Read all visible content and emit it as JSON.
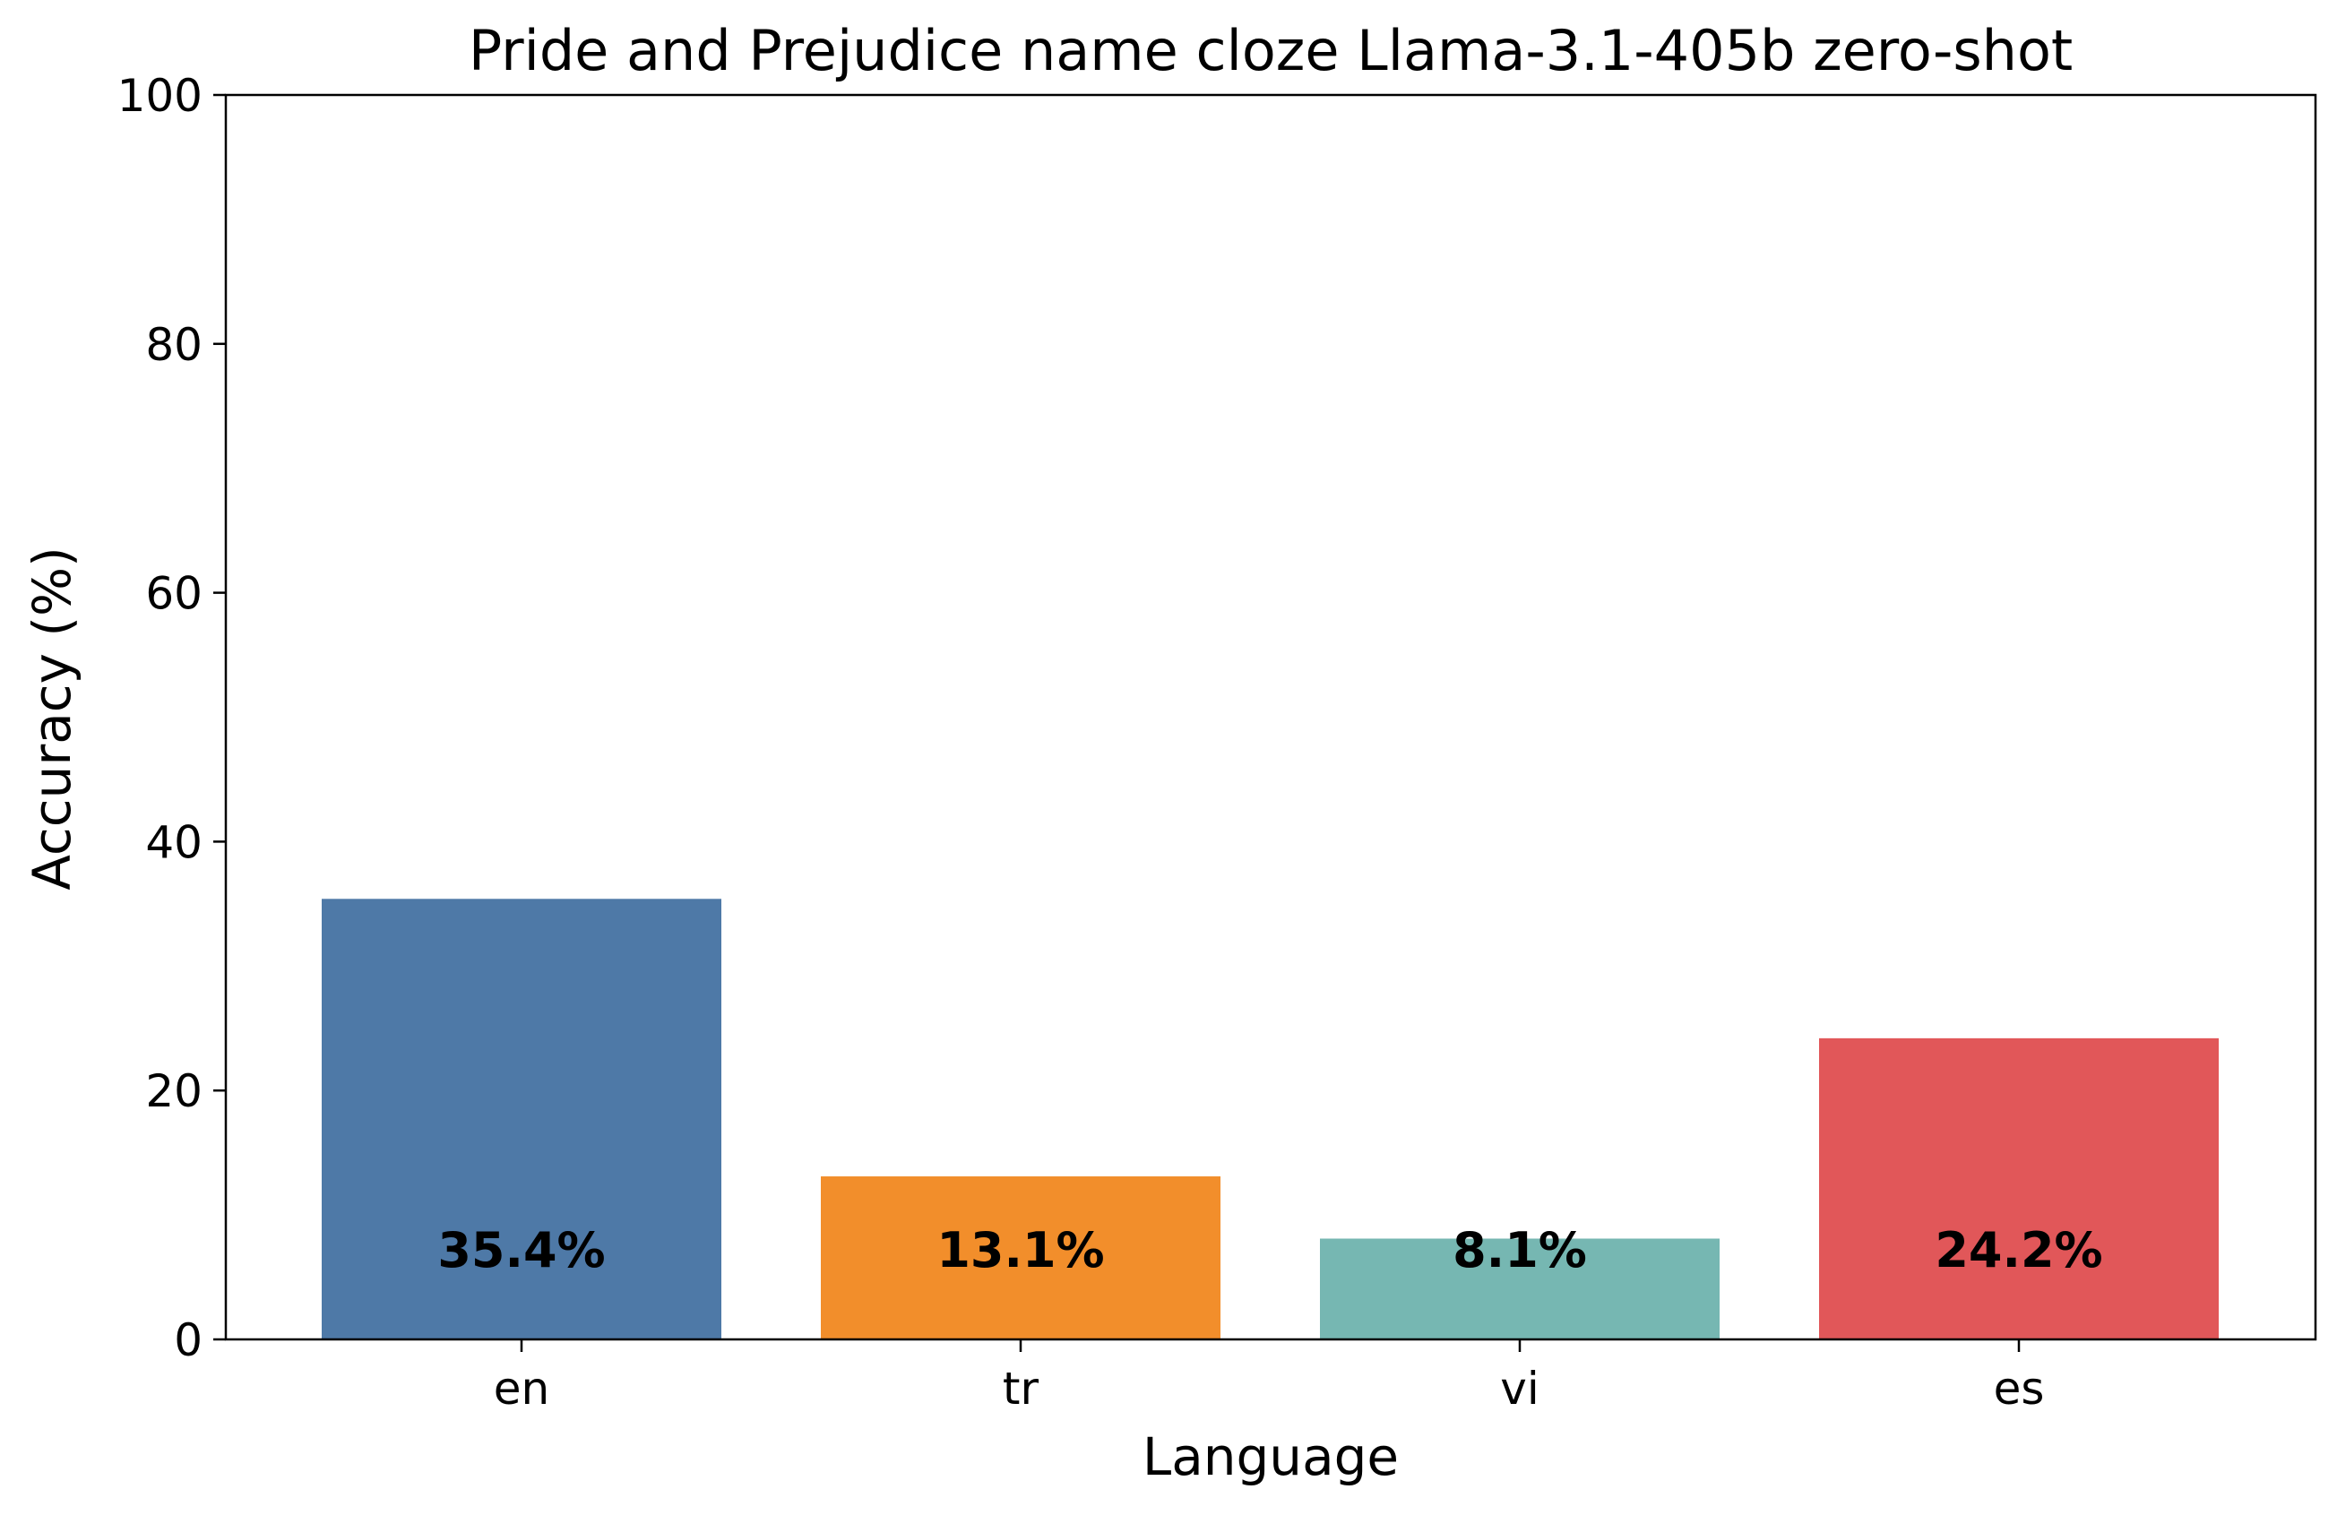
{
  "chart_data": {
    "type": "bar",
    "title": "Pride and Prejudice name cloze Llama-3.1-405b zero-shot",
    "xlabel": "Language",
    "ylabel": "Accuracy (%)",
    "categories": [
      "en",
      "tr",
      "vi",
      "es"
    ],
    "values": [
      35.4,
      13.1,
      8.1,
      24.2
    ],
    "value_labels": [
      "35.4%",
      "13.1%",
      "8.1%",
      "24.2%"
    ],
    "colors": [
      "#4e79a7",
      "#f28e2b",
      "#76b7b2",
      "#e15759"
    ],
    "ylim": [
      0,
      100
    ],
    "yticks": [
      0,
      20,
      40,
      60,
      80,
      100
    ],
    "ytick_labels": [
      "0",
      "20",
      "40",
      "60",
      "80",
      "100"
    ],
    "grid": false,
    "legend": "none"
  }
}
